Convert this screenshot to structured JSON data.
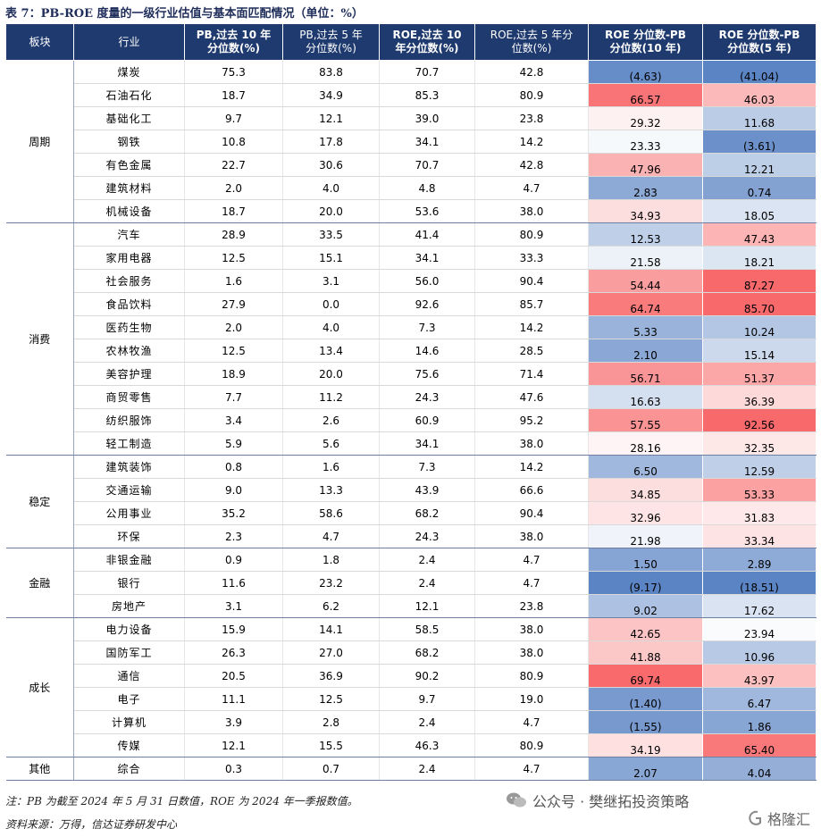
{
  "title": "表 7：PB-ROE 度量的一级行业估值与基本面匹配情况（单位：%）",
  "headers": {
    "sector": "板块",
    "industry": "行业",
    "pb10_l1": "PB,过去 10 年",
    "pb10_l2": "分位数(%)",
    "pb5_l1": "PB,过去 5 年",
    "pb5_l2": "分位数(%)",
    "roe10_l1": "ROE,过去 10",
    "roe10_l2": "年分位数(%)",
    "roe5_l1": "ROE,过去 5 年分",
    "roe5_l2": "位数(%)",
    "d10_l1": "ROE 分位数-PB",
    "d10_l2": "分位数(10 年)",
    "d5_l1": "ROE 分位数-PB",
    "d5_l2": "分位数(5 年)"
  },
  "sectors": [
    {
      "name": "周期",
      "rows": [
        {
          "industry": "煤炭",
          "pb10": "75.3",
          "pb5": "83.8",
          "roe10": "70.7",
          "roe5": "42.8",
          "d10": "(4.63)",
          "d5": "(41.04)",
          "v10": -4.63,
          "v5": -41.04
        },
        {
          "industry": "石油石化",
          "pb10": "18.7",
          "pb5": "34.9",
          "roe10": "85.3",
          "roe5": "80.9",
          "d10": "66.57",
          "d5": "46.03",
          "v10": 66.57,
          "v5": 46.03
        },
        {
          "industry": "基础化工",
          "pb10": "9.7",
          "pb5": "12.1",
          "roe10": "39.0",
          "roe5": "23.8",
          "d10": "29.32",
          "d5": "11.68",
          "v10": 29.32,
          "v5": 11.68
        },
        {
          "industry": "钢铁",
          "pb10": "10.8",
          "pb5": "17.8",
          "roe10": "34.1",
          "roe5": "14.2",
          "d10": "23.33",
          "d5": "(3.61)",
          "v10": 23.33,
          "v5": -3.61
        },
        {
          "industry": "有色金属",
          "pb10": "22.7",
          "pb5": "30.6",
          "roe10": "70.7",
          "roe5": "42.8",
          "d10": "47.96",
          "d5": "12.21",
          "v10": 47.96,
          "v5": 12.21
        },
        {
          "industry": "建筑材料",
          "pb10": "2.0",
          "pb5": "4.0",
          "roe10": "4.8",
          "roe5": "4.7",
          "d10": "2.83",
          "d5": "0.74",
          "v10": 2.83,
          "v5": 0.74
        },
        {
          "industry": "机械设备",
          "pb10": "18.7",
          "pb5": "20.0",
          "roe10": "53.6",
          "roe5": "38.0",
          "d10": "34.93",
          "d5": "18.05",
          "v10": 34.93,
          "v5": 18.05
        }
      ]
    },
    {
      "name": "消费",
      "rows": [
        {
          "industry": "汽车",
          "pb10": "28.9",
          "pb5": "33.5",
          "roe10": "41.4",
          "roe5": "80.9",
          "d10": "12.53",
          "d5": "47.43",
          "v10": 12.53,
          "v5": 47.43
        },
        {
          "industry": "家用电器",
          "pb10": "12.5",
          "pb5": "15.1",
          "roe10": "34.1",
          "roe5": "33.3",
          "d10": "21.58",
          "d5": "18.21",
          "v10": 21.58,
          "v5": 18.21
        },
        {
          "industry": "社会服务",
          "pb10": "1.6",
          "pb5": "3.1",
          "roe10": "56.0",
          "roe5": "90.4",
          "d10": "54.44",
          "d5": "87.27",
          "v10": 54.44,
          "v5": 87.27
        },
        {
          "industry": "食品饮料",
          "pb10": "27.9",
          "pb5": "0.0",
          "roe10": "92.6",
          "roe5": "85.7",
          "d10": "64.74",
          "d5": "85.70",
          "v10": 64.74,
          "v5": 85.7
        },
        {
          "industry": "医药生物",
          "pb10": "2.0",
          "pb5": "4.0",
          "roe10": "7.3",
          "roe5": "14.2",
          "d10": "5.33",
          "d5": "10.24",
          "v10": 5.33,
          "v5": 10.24
        },
        {
          "industry": "农林牧渔",
          "pb10": "12.5",
          "pb5": "13.4",
          "roe10": "14.6",
          "roe5": "28.5",
          "d10": "2.10",
          "d5": "15.14",
          "v10": 2.1,
          "v5": 15.14
        },
        {
          "industry": "美容护理",
          "pb10": "18.9",
          "pb5": "20.0",
          "roe10": "75.6",
          "roe5": "71.4",
          "d10": "56.71",
          "d5": "51.37",
          "v10": 56.71,
          "v5": 51.37
        },
        {
          "industry": "商贸零售",
          "pb10": "7.7",
          "pb5": "11.2",
          "roe10": "24.3",
          "roe5": "47.6",
          "d10": "16.63",
          "d5": "36.39",
          "v10": 16.63,
          "v5": 36.39
        },
        {
          "industry": "纺织服饰",
          "pb10": "3.4",
          "pb5": "2.6",
          "roe10": "60.9",
          "roe5": "95.2",
          "d10": "57.55",
          "d5": "92.56",
          "v10": 57.55,
          "v5": 92.56
        },
        {
          "industry": "轻工制造",
          "pb10": "5.9",
          "pb5": "5.6",
          "roe10": "34.1",
          "roe5": "38.0",
          "d10": "28.16",
          "d5": "32.35",
          "v10": 28.16,
          "v5": 32.35
        }
      ]
    },
    {
      "name": "稳定",
      "rows": [
        {
          "industry": "建筑装饰",
          "pb10": "0.8",
          "pb5": "1.6",
          "roe10": "7.3",
          "roe5": "14.2",
          "d10": "6.50",
          "d5": "12.59",
          "v10": 6.5,
          "v5": 12.59
        },
        {
          "industry": "交通运输",
          "pb10": "9.0",
          "pb5": "13.3",
          "roe10": "43.9",
          "roe5": "66.6",
          "d10": "34.85",
          "d5": "53.33",
          "v10": 34.85,
          "v5": 53.33
        },
        {
          "industry": "公用事业",
          "pb10": "35.2",
          "pb5": "58.6",
          "roe10": "68.2",
          "roe5": "90.4",
          "d10": "32.96",
          "d5": "31.83",
          "v10": 32.96,
          "v5": 31.83
        },
        {
          "industry": "环保",
          "pb10": "2.3",
          "pb5": "4.7",
          "roe10": "24.3",
          "roe5": "38.0",
          "d10": "21.98",
          "d5": "33.34",
          "v10": 21.98,
          "v5": 33.34
        }
      ]
    },
    {
      "name": "金融",
      "rows": [
        {
          "industry": "非银金融",
          "pb10": "0.9",
          "pb5": "1.8",
          "roe10": "2.4",
          "roe5": "4.7",
          "d10": "1.50",
          "d5": "2.89",
          "v10": 1.5,
          "v5": 2.89
        },
        {
          "industry": "银行",
          "pb10": "11.6",
          "pb5": "23.2",
          "roe10": "2.4",
          "roe5": "4.7",
          "d10": "(9.17)",
          "d5": "(18.51)",
          "v10": -9.17,
          "v5": -18.51
        },
        {
          "industry": "房地产",
          "pb10": "3.1",
          "pb5": "6.2",
          "roe10": "12.1",
          "roe5": "23.8",
          "d10": "9.02",
          "d5": "17.62",
          "v10": 9.02,
          "v5": 17.62
        }
      ]
    },
    {
      "name": "成长",
      "rows": [
        {
          "industry": "电力设备",
          "pb10": "15.9",
          "pb5": "14.1",
          "roe10": "58.5",
          "roe5": "38.0",
          "d10": "42.65",
          "d5": "23.94",
          "v10": 42.65,
          "v5": 23.94
        },
        {
          "industry": "国防军工",
          "pb10": "26.3",
          "pb5": "27.0",
          "roe10": "68.2",
          "roe5": "38.0",
          "d10": "41.88",
          "d5": "10.96",
          "v10": 41.88,
          "v5": 10.96
        },
        {
          "industry": "通信",
          "pb10": "20.5",
          "pb5": "36.9",
          "roe10": "90.2",
          "roe5": "80.9",
          "d10": "69.74",
          "d5": "43.97",
          "v10": 69.74,
          "v5": 43.97
        },
        {
          "industry": "电子",
          "pb10": "11.1",
          "pb5": "12.5",
          "roe10": "9.7",
          "roe5": "19.0",
          "d10": "(1.40)",
          "d5": "6.47",
          "v10": -1.4,
          "v5": 6.47
        },
        {
          "industry": "计算机",
          "pb10": "3.9",
          "pb5": "2.8",
          "roe10": "2.4",
          "roe5": "4.7",
          "d10": "(1.55)",
          "d5": "1.86",
          "v10": -1.55,
          "v5": 1.86
        },
        {
          "industry": "传媒",
          "pb10": "12.1",
          "pb5": "15.5",
          "roe10": "46.3",
          "roe5": "80.9",
          "d10": "34.19",
          "d5": "65.40",
          "v10": 34.19,
          "v5": 65.4
        }
      ]
    },
    {
      "name": "其他",
      "rows": [
        {
          "industry": "综合",
          "pb10": "0.3",
          "pb5": "0.7",
          "roe10": "2.4",
          "roe5": "4.7",
          "d10": "2.07",
          "d5": "4.04",
          "v10": 2.07,
          "v5": 4.04
        }
      ]
    }
  ],
  "footnote1": "注：PB 为截至 2024 年 5 月 31 日数值，ROE 为 2024 年一季报数值。",
  "footnote2": "资料来源：万得，信达证券研发中心",
  "watermark": "公众号 · 樊继拓投资策略",
  "watermark2": "格隆汇",
  "colors": {
    "header_bg": "#1f3a6e",
    "low": "#5b84c4",
    "mid": "#ffffff",
    "high": "#f8696b"
  }
}
